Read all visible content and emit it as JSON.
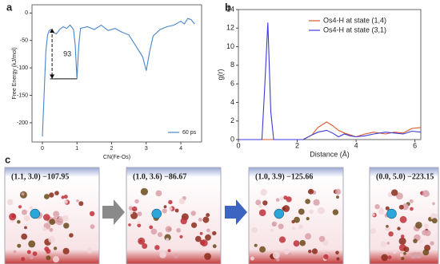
{
  "chart_data": [
    {
      "type": "line",
      "panel": "a",
      "x_label": "CN(Fe-Os)",
      "y_label": "Free Energy (kJ/mol)",
      "annotation": "93",
      "x": [
        0,
        0.05,
        0.1,
        0.15,
        0.2,
        0.25,
        0.3,
        0.4,
        0.5,
        0.6,
        0.7,
        0.8,
        0.9,
        0.95,
        1.0,
        1.05,
        1.1,
        1.3,
        1.5,
        1.7,
        1.9,
        2.1,
        2.3,
        2.5,
        2.7,
        2.9,
        3.0,
        3.1,
        3.2,
        3.4,
        3.6,
        3.8,
        4.0,
        4.1,
        4.2,
        4.3,
        4.4
      ],
      "series": [
        {
          "name": "60 ps",
          "color": "#4a86c8",
          "values": [
            -225,
            -150,
            -70,
            -40,
            -32,
            -30,
            -35,
            -38,
            -30,
            -25,
            -28,
            -22,
            -30,
            -60,
            -120,
            -60,
            -28,
            -25,
            -30,
            -22,
            -32,
            -28,
            -35,
            -40,
            -60,
            -80,
            -105,
            -70,
            -42,
            -30,
            -25,
            -22,
            -15,
            -20,
            -10,
            -12,
            -20
          ]
        }
      ],
      "xlim": [
        -0.3,
        4.6
      ],
      "xticks": [
        0,
        1,
        2,
        3,
        4
      ],
      "ylim": [
        -235,
        15
      ],
      "yticks": [
        -200,
        -150,
        -100,
        -50,
        0
      ]
    },
    {
      "type": "line",
      "panel": "b",
      "x_label": "Distance (Å)",
      "y_label": "g(r)",
      "x": [
        0,
        0.8,
        0.9,
        1.0,
        1.1,
        1.2,
        2.2,
        2.5,
        2.7,
        3.0,
        3.2,
        3.4,
        3.6,
        3.8,
        4.0,
        4.3,
        4.6,
        5.0,
        5.3,
        5.6,
        5.9,
        6.2
      ],
      "series": [
        {
          "name": "Os4-H at state (1,4)",
          "color": "#d9582b",
          "values": [
            0,
            0,
            0,
            0,
            0,
            0,
            0,
            0.5,
            1.3,
            1.9,
            1.5,
            1.0,
            0.7,
            0.5,
            0.3,
            0.6,
            0.8,
            0.6,
            0.8,
            0.7,
            1.2,
            1.3
          ]
        },
        {
          "name": "Os4-H at state (3,1)",
          "color": "#3b3bd8",
          "values": [
            0,
            0,
            6,
            12.6,
            3,
            0,
            0,
            0.5,
            0.8,
            1.0,
            0.7,
            0.3,
            0.6,
            0.4,
            0.3,
            0.4,
            0.6,
            0.8,
            0.7,
            0.6,
            0.9,
            0.8
          ]
        }
      ],
      "xlim": [
        0,
        6.2
      ],
      "xticks": [
        0,
        2,
        4,
        6
      ],
      "ylim": [
        0,
        14
      ],
      "yticks": [
        0,
        2,
        4,
        6,
        8,
        10,
        12,
        14
      ]
    }
  ],
  "panel_c": {
    "label": "c",
    "states": [
      "(1.1, 3.0)  −107.95",
      "(1.0, 3.6)  −86.67",
      "(1.0, 3.9)  −125.66",
      "(0.0, 5.0)  −223.15"
    ]
  }
}
